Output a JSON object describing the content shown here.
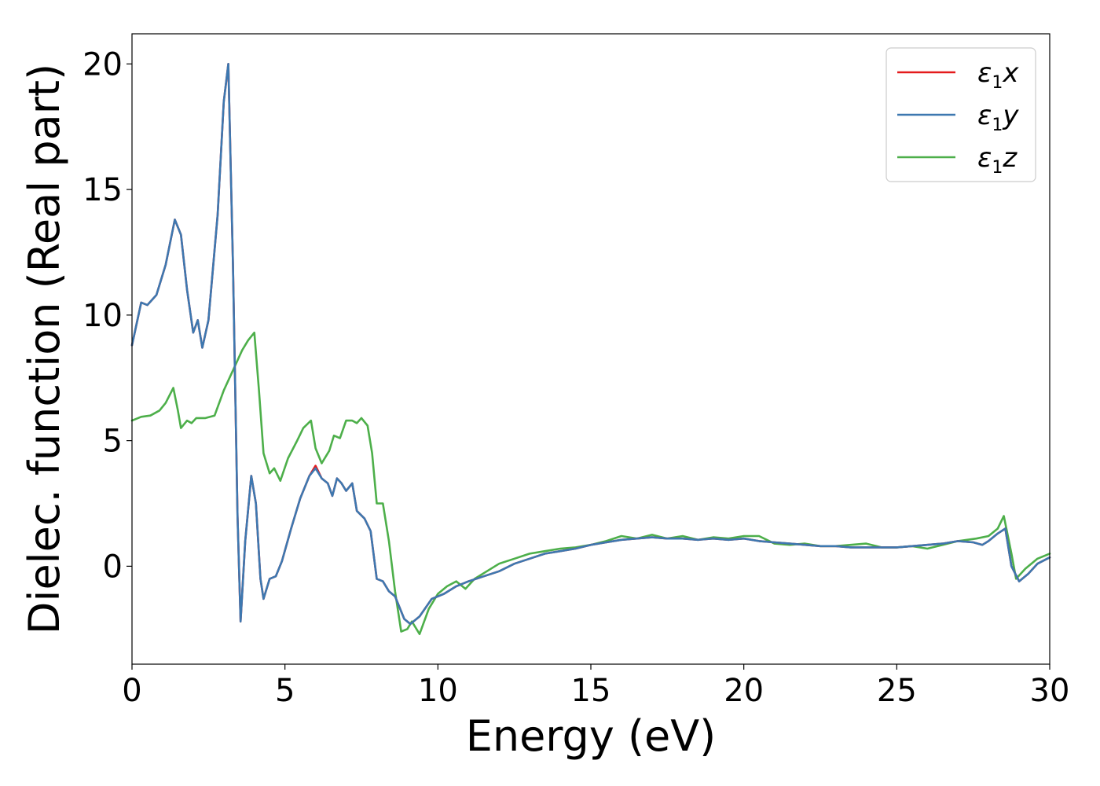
{
  "chart_data": {
    "type": "line",
    "title": "",
    "xlabel": "Energy (eV)",
    "ylabel": "Dielec. function (Real part)",
    "xlim": [
      0,
      30
    ],
    "ylim": [
      -3.9,
      21.2
    ],
    "x_ticks": [
      0,
      5,
      10,
      15,
      20,
      25,
      30
    ],
    "y_ticks": [
      0,
      5,
      10,
      15,
      20
    ],
    "grid": false,
    "legend_position": "top-right",
    "series": [
      {
        "name": "ε1x",
        "legend": {
          "base": "ε",
          "sub": "1",
          "suffix": "x"
        },
        "color": "#e41a1c",
        "points": [
          [
            0,
            8.8
          ],
          [
            0.3,
            10.5
          ],
          [
            0.5,
            10.4
          ],
          [
            0.8,
            10.8
          ],
          [
            1.1,
            12.0
          ],
          [
            1.4,
            13.8
          ],
          [
            1.6,
            13.2
          ],
          [
            1.8,
            11.0
          ],
          [
            2.0,
            9.3
          ],
          [
            2.15,
            9.8
          ],
          [
            2.3,
            8.7
          ],
          [
            2.5,
            9.8
          ],
          [
            2.8,
            14.0
          ],
          [
            3.0,
            18.5
          ],
          [
            3.15,
            20.0
          ],
          [
            3.3,
            12.0
          ],
          [
            3.45,
            2.0
          ],
          [
            3.55,
            -2.2
          ],
          [
            3.7,
            1.0
          ],
          [
            3.9,
            3.6
          ],
          [
            4.05,
            2.5
          ],
          [
            4.2,
            -0.5
          ],
          [
            4.3,
            -1.3
          ],
          [
            4.5,
            -0.5
          ],
          [
            4.7,
            -0.4
          ],
          [
            4.9,
            0.2
          ],
          [
            5.2,
            1.5
          ],
          [
            5.5,
            2.7
          ],
          [
            5.8,
            3.6
          ],
          [
            6.0,
            4.0
          ],
          [
            6.2,
            3.5
          ],
          [
            6.4,
            3.3
          ],
          [
            6.55,
            2.8
          ],
          [
            6.7,
            3.5
          ],
          [
            6.85,
            3.3
          ],
          [
            7.0,
            3.0
          ],
          [
            7.2,
            3.3
          ],
          [
            7.35,
            2.2
          ],
          [
            7.6,
            1.9
          ],
          [
            7.8,
            1.4
          ],
          [
            8.0,
            -0.5
          ],
          [
            8.2,
            -0.6
          ],
          [
            8.4,
            -1.0
          ],
          [
            8.6,
            -1.2
          ],
          [
            8.9,
            -2.1
          ],
          [
            9.1,
            -2.3
          ],
          [
            9.4,
            -2.0
          ],
          [
            9.8,
            -1.3
          ],
          [
            10.2,
            -1.1
          ],
          [
            10.6,
            -0.8
          ],
          [
            11.0,
            -0.6
          ],
          [
            11.5,
            -0.4
          ],
          [
            12.0,
            -0.2
          ],
          [
            12.5,
            0.1
          ],
          [
            13.0,
            0.3
          ],
          [
            13.5,
            0.5
          ],
          [
            14.0,
            0.6
          ],
          [
            14.5,
            0.7
          ],
          [
            15.0,
            0.85
          ],
          [
            15.5,
            0.95
          ],
          [
            16.0,
            1.05
          ],
          [
            16.5,
            1.1
          ],
          [
            17.0,
            1.15
          ],
          [
            17.5,
            1.1
          ],
          [
            18.0,
            1.1
          ],
          [
            18.5,
            1.05
          ],
          [
            19.0,
            1.1
          ],
          [
            19.5,
            1.05
          ],
          [
            20.0,
            1.1
          ],
          [
            20.5,
            1.0
          ],
          [
            21.0,
            0.95
          ],
          [
            21.5,
            0.9
          ],
          [
            22.0,
            0.85
          ],
          [
            22.5,
            0.8
          ],
          [
            23.0,
            0.8
          ],
          [
            23.5,
            0.75
          ],
          [
            24.0,
            0.75
          ],
          [
            24.5,
            0.75
          ],
          [
            25.0,
            0.75
          ],
          [
            25.5,
            0.8
          ],
          [
            26.0,
            0.85
          ],
          [
            26.5,
            0.9
          ],
          [
            27.0,
            1.0
          ],
          [
            27.5,
            0.95
          ],
          [
            27.8,
            0.85
          ],
          [
            28.0,
            1.0
          ],
          [
            28.3,
            1.3
          ],
          [
            28.55,
            1.5
          ],
          [
            28.75,
            0.0
          ],
          [
            29.0,
            -0.6
          ],
          [
            29.3,
            -0.3
          ],
          [
            29.6,
            0.1
          ],
          [
            30.0,
            0.35
          ]
        ]
      },
      {
        "name": "ε1y",
        "legend": {
          "base": "ε",
          "sub": "1",
          "suffix": "y"
        },
        "color": "#3d78b0",
        "points": [
          [
            0,
            8.8
          ],
          [
            0.3,
            10.5
          ],
          [
            0.5,
            10.4
          ],
          [
            0.8,
            10.8
          ],
          [
            1.1,
            12.0
          ],
          [
            1.4,
            13.8
          ],
          [
            1.6,
            13.2
          ],
          [
            1.8,
            11.0
          ],
          [
            2.0,
            9.3
          ],
          [
            2.15,
            9.8
          ],
          [
            2.3,
            8.7
          ],
          [
            2.5,
            9.8
          ],
          [
            2.8,
            14.0
          ],
          [
            3.0,
            18.5
          ],
          [
            3.15,
            20.0
          ],
          [
            3.3,
            12.0
          ],
          [
            3.45,
            2.0
          ],
          [
            3.55,
            -2.2
          ],
          [
            3.7,
            1.0
          ],
          [
            3.9,
            3.6
          ],
          [
            4.05,
            2.5
          ],
          [
            4.2,
            -0.5
          ],
          [
            4.3,
            -1.3
          ],
          [
            4.5,
            -0.5
          ],
          [
            4.7,
            -0.4
          ],
          [
            4.9,
            0.2
          ],
          [
            5.2,
            1.5
          ],
          [
            5.5,
            2.7
          ],
          [
            5.8,
            3.6
          ],
          [
            6.0,
            3.9
          ],
          [
            6.2,
            3.5
          ],
          [
            6.4,
            3.3
          ],
          [
            6.55,
            2.8
          ],
          [
            6.7,
            3.5
          ],
          [
            6.85,
            3.3
          ],
          [
            7.0,
            3.0
          ],
          [
            7.2,
            3.3
          ],
          [
            7.35,
            2.2
          ],
          [
            7.6,
            1.9
          ],
          [
            7.8,
            1.4
          ],
          [
            8.0,
            -0.5
          ],
          [
            8.2,
            -0.6
          ],
          [
            8.4,
            -1.0
          ],
          [
            8.6,
            -1.2
          ],
          [
            8.9,
            -2.1
          ],
          [
            9.1,
            -2.3
          ],
          [
            9.4,
            -2.0
          ],
          [
            9.8,
            -1.3
          ],
          [
            10.2,
            -1.1
          ],
          [
            10.6,
            -0.8
          ],
          [
            11.0,
            -0.6
          ],
          [
            11.5,
            -0.4
          ],
          [
            12.0,
            -0.2
          ],
          [
            12.5,
            0.1
          ],
          [
            13.0,
            0.3
          ],
          [
            13.5,
            0.5
          ],
          [
            14.0,
            0.6
          ],
          [
            14.5,
            0.7
          ],
          [
            15.0,
            0.85
          ],
          [
            15.5,
            0.95
          ],
          [
            16.0,
            1.05
          ],
          [
            16.5,
            1.1
          ],
          [
            17.0,
            1.15
          ],
          [
            17.5,
            1.1
          ],
          [
            18.0,
            1.1
          ],
          [
            18.5,
            1.05
          ],
          [
            19.0,
            1.1
          ],
          [
            19.5,
            1.05
          ],
          [
            20.0,
            1.1
          ],
          [
            20.5,
            1.0
          ],
          [
            21.0,
            0.95
          ],
          [
            21.5,
            0.9
          ],
          [
            22.0,
            0.85
          ],
          [
            22.5,
            0.8
          ],
          [
            23.0,
            0.8
          ],
          [
            23.5,
            0.75
          ],
          [
            24.0,
            0.75
          ],
          [
            24.5,
            0.75
          ],
          [
            25.0,
            0.75
          ],
          [
            25.5,
            0.8
          ],
          [
            26.0,
            0.85
          ],
          [
            26.5,
            0.9
          ],
          [
            27.0,
            1.0
          ],
          [
            27.5,
            0.95
          ],
          [
            27.8,
            0.85
          ],
          [
            28.0,
            1.0
          ],
          [
            28.3,
            1.3
          ],
          [
            28.55,
            1.5
          ],
          [
            28.75,
            0.0
          ],
          [
            29.0,
            -0.6
          ],
          [
            29.3,
            -0.3
          ],
          [
            29.6,
            0.1
          ],
          [
            30.0,
            0.35
          ]
        ]
      },
      {
        "name": "ε1z",
        "legend": {
          "base": "ε",
          "sub": "1",
          "suffix": "z"
        },
        "color": "#4daf4a",
        "points": [
          [
            0,
            5.8
          ],
          [
            0.3,
            5.95
          ],
          [
            0.6,
            6.0
          ],
          [
            0.9,
            6.2
          ],
          [
            1.1,
            6.5
          ],
          [
            1.35,
            7.1
          ],
          [
            1.5,
            6.2
          ],
          [
            1.6,
            5.5
          ],
          [
            1.8,
            5.8
          ],
          [
            1.95,
            5.7
          ],
          [
            2.1,
            5.9
          ],
          [
            2.4,
            5.9
          ],
          [
            2.7,
            6.0
          ],
          [
            3.0,
            7.0
          ],
          [
            3.3,
            7.8
          ],
          [
            3.6,
            8.6
          ],
          [
            3.8,
            9.0
          ],
          [
            4.0,
            9.3
          ],
          [
            4.15,
            7.0
          ],
          [
            4.3,
            4.5
          ],
          [
            4.5,
            3.7
          ],
          [
            4.65,
            3.9
          ],
          [
            4.85,
            3.4
          ],
          [
            5.1,
            4.3
          ],
          [
            5.4,
            5.0
          ],
          [
            5.6,
            5.5
          ],
          [
            5.85,
            5.8
          ],
          [
            6.0,
            4.7
          ],
          [
            6.2,
            4.1
          ],
          [
            6.45,
            4.6
          ],
          [
            6.6,
            5.2
          ],
          [
            6.8,
            5.1
          ],
          [
            7.0,
            5.8
          ],
          [
            7.2,
            5.8
          ],
          [
            7.35,
            5.7
          ],
          [
            7.5,
            5.9
          ],
          [
            7.7,
            5.6
          ],
          [
            7.85,
            4.5
          ],
          [
            8.0,
            2.5
          ],
          [
            8.2,
            2.5
          ],
          [
            8.4,
            1.0
          ],
          [
            8.6,
            -1.0
          ],
          [
            8.8,
            -2.6
          ],
          [
            9.0,
            -2.5
          ],
          [
            9.15,
            -2.2
          ],
          [
            9.4,
            -2.7
          ],
          [
            9.7,
            -1.7
          ],
          [
            10.0,
            -1.1
          ],
          [
            10.3,
            -0.8
          ],
          [
            10.6,
            -0.6
          ],
          [
            10.9,
            -0.9
          ],
          [
            11.2,
            -0.5
          ],
          [
            11.6,
            -0.2
          ],
          [
            12.0,
            0.1
          ],
          [
            12.5,
            0.3
          ],
          [
            13.0,
            0.5
          ],
          [
            13.5,
            0.6
          ],
          [
            14.0,
            0.7
          ],
          [
            14.5,
            0.75
          ],
          [
            15.0,
            0.85
          ],
          [
            15.5,
            1.0
          ],
          [
            16.0,
            1.2
          ],
          [
            16.5,
            1.1
          ],
          [
            17.0,
            1.25
          ],
          [
            17.5,
            1.1
          ],
          [
            18.0,
            1.2
          ],
          [
            18.5,
            1.05
          ],
          [
            19.0,
            1.15
          ],
          [
            19.5,
            1.1
          ],
          [
            20.0,
            1.2
          ],
          [
            20.5,
            1.2
          ],
          [
            21.0,
            0.9
          ],
          [
            21.5,
            0.85
          ],
          [
            22.0,
            0.9
          ],
          [
            22.5,
            0.8
          ],
          [
            23.0,
            0.8
          ],
          [
            23.5,
            0.85
          ],
          [
            24.0,
            0.9
          ],
          [
            24.5,
            0.75
          ],
          [
            25.0,
            0.75
          ],
          [
            25.5,
            0.8
          ],
          [
            26.0,
            0.7
          ],
          [
            26.5,
            0.85
          ],
          [
            27.0,
            1.0
          ],
          [
            27.3,
            1.05
          ],
          [
            27.6,
            1.1
          ],
          [
            28.0,
            1.2
          ],
          [
            28.3,
            1.5
          ],
          [
            28.5,
            2.0
          ],
          [
            28.75,
            0.5
          ],
          [
            28.9,
            -0.5
          ],
          [
            29.2,
            -0.1
          ],
          [
            29.6,
            0.3
          ],
          [
            30.0,
            0.5
          ]
        ]
      }
    ]
  }
}
